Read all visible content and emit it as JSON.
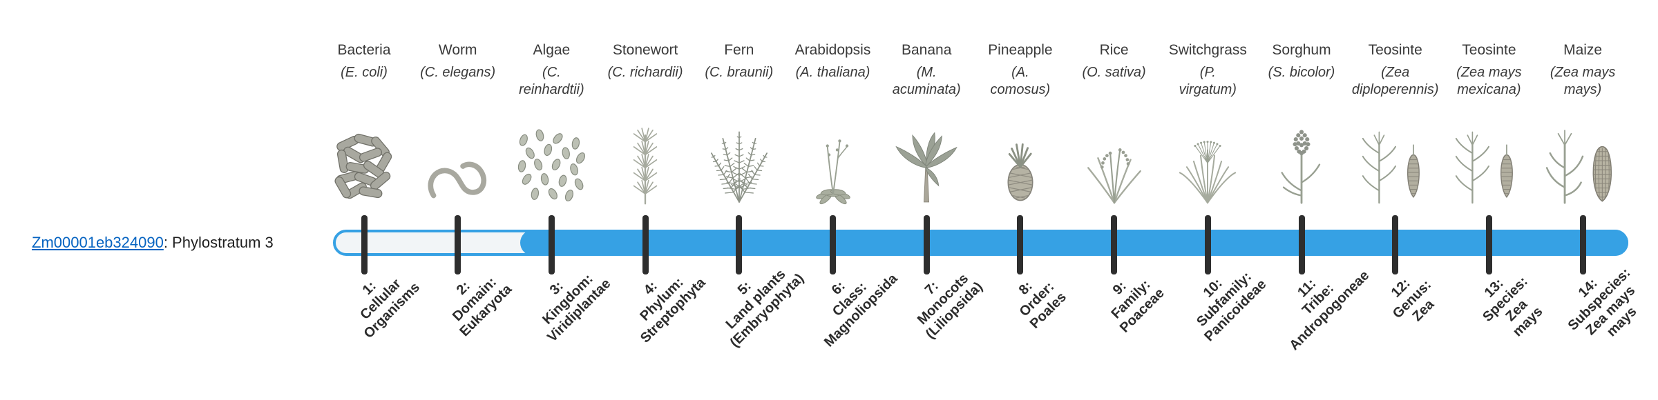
{
  "gene": {
    "id": "Zm00001eb324090",
    "suffix": ": Phylostratum 3"
  },
  "colors": {
    "track_fill": "#36a1e4",
    "track_outline": "#36a1e4",
    "track_empty": "#f2f5f7",
    "tick": "#2e2e2e",
    "link": "#0563c1",
    "illustration_gray": "#99a092"
  },
  "track": {
    "fill_starts_at_stratum": 3,
    "total_strata": 14
  },
  "strata": [
    {
      "num": "1",
      "organism": "Bacteria",
      "species": "(E. coli)",
      "icon": "bacteria",
      "label": "1:\nCellular\nOrganisms"
    },
    {
      "num": "2",
      "organism": "Worm",
      "species": "(C. elegans)",
      "icon": "worm",
      "label": "2:\nDomain:\nEukaryota"
    },
    {
      "num": "3",
      "organism": "Algae",
      "species": "(C.\nreinhardtii)",
      "icon": "algae",
      "label": "3:\nKingdom:\nViridiplantae"
    },
    {
      "num": "4",
      "organism": "Stonewort",
      "species": "(C. richardii)",
      "icon": "stonewort",
      "label": "4:\nPhylum:\nStreptophyta"
    },
    {
      "num": "5",
      "organism": "Fern",
      "species": "(C. braunii)",
      "icon": "fern",
      "label": "5:\nLand plants\n(Embryophyta)"
    },
    {
      "num": "6",
      "organism": "Arabidopsis",
      "species": "(A. thaliana)",
      "icon": "arabidopsis",
      "label": "6:\nClass:\nMagnoliopsida"
    },
    {
      "num": "7",
      "organism": "Banana",
      "species": "(M.\nacuminata)",
      "icon": "banana",
      "label": "7:\nMonocots\n(Liliopsida)"
    },
    {
      "num": "8",
      "organism": "Pineapple",
      "species": "(A.\ncomosus)",
      "icon": "pineapple",
      "label": "8:\nOrder:\nPoales"
    },
    {
      "num": "9",
      "organism": "Rice",
      "species": "(O. sativa)",
      "icon": "rice",
      "label": "9:\nFamily:\nPoaceae"
    },
    {
      "num": "10",
      "organism": "Switchgrass",
      "species": "(P.\nvirgatum)",
      "icon": "switchgrass",
      "label": "10:\nSubfamily:\nPanicoideae"
    },
    {
      "num": "11",
      "organism": "Sorghum",
      "species": "(S. bicolor)",
      "icon": "sorghum",
      "label": "11:\nTribe:\nAndropogoneae"
    },
    {
      "num": "12",
      "organism": "Teosinte",
      "species": "(Zea\ndiploperennis)",
      "icon": "teosinte",
      "label": "12:\nGenus:\nZea"
    },
    {
      "num": "13",
      "organism": "Teosinte",
      "species": "(Zea mays\nmexicana)",
      "icon": "teosinte",
      "label": "13:\nSpecies:\nZea\nmays"
    },
    {
      "num": "14",
      "organism": "Maize",
      "species": "(Zea mays\nmays)",
      "icon": "maize",
      "label": "14:\nSubspecies:\nZea mays\nmays"
    }
  ]
}
